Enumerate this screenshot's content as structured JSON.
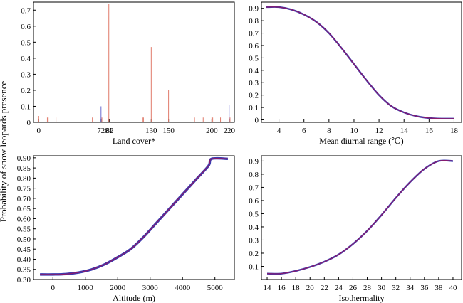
{
  "figure": {
    "ylabel": "Probability of snow leopards presence"
  },
  "colors": {
    "axis": "#000000",
    "line": "#8b1a6b",
    "line_shadow": "#3b3bb0",
    "bar_red": "#e07a6a",
    "bar_blue": "#6a6ad0"
  },
  "chart_data": [
    {
      "id": "landcover",
      "type": "bar",
      "xlabel": "Land cover*",
      "ylabel": "",
      "ylim": [
        0,
        0.75
      ],
      "yticks": [
        0,
        0.1,
        0.2,
        0.3,
        0.4,
        0.5,
        0.6,
        0.7
      ],
      "xticks": [
        0,
        72,
        81,
        82,
        130,
        150,
        200,
        220
      ],
      "xlim": [
        -6,
        226
      ],
      "grid": false,
      "bars": [
        {
          "x": 0,
          "value": 0.04,
          "color": "red"
        },
        {
          "x": 10,
          "value": 0.03,
          "color": "red"
        },
        {
          "x": 11,
          "value": 0.03,
          "color": "red"
        },
        {
          "x": 20,
          "value": 0.03,
          "color": "red"
        },
        {
          "x": 62,
          "value": 0.03,
          "color": "red"
        },
        {
          "x": 72,
          "value": 0.1,
          "color": "blue"
        },
        {
          "x": 73,
          "value": 0.03,
          "color": "red"
        },
        {
          "x": 80,
          "value": 0.66,
          "color": "red"
        },
        {
          "x": 81,
          "value": 0.74,
          "color": "red"
        },
        {
          "x": 82,
          "value": 0.0,
          "color": "red"
        },
        {
          "x": 120,
          "value": 0.03,
          "color": "red"
        },
        {
          "x": 121,
          "value": 0.03,
          "color": "red"
        },
        {
          "x": 130,
          "value": 0.47,
          "color": "red"
        },
        {
          "x": 150,
          "value": 0.2,
          "color": "red"
        },
        {
          "x": 180,
          "value": 0.03,
          "color": "red"
        },
        {
          "x": 190,
          "value": 0.03,
          "color": "red"
        },
        {
          "x": 200,
          "value": 0.03,
          "color": "red"
        },
        {
          "x": 201,
          "value": 0.03,
          "color": "red"
        },
        {
          "x": 210,
          "value": 0.03,
          "color": "red"
        },
        {
          "x": 220,
          "value": 0.11,
          "color": "blue"
        },
        {
          "x": 221,
          "value": 0.03,
          "color": "red"
        }
      ]
    },
    {
      "id": "diurnal",
      "type": "line",
      "xlabel": "Mean diurnal range (℃)",
      "ylabel": "",
      "xlim": [
        2.6,
        18.6
      ],
      "ylim": [
        -0.02,
        0.95
      ],
      "xticks": [
        4,
        6,
        8,
        10,
        12,
        14,
        16,
        18
      ],
      "yticks": [
        0,
        0.1,
        0.2,
        0.3,
        0.4,
        0.5,
        0.6,
        0.7,
        0.8,
        0.9
      ],
      "grid": false,
      "series": [
        {
          "x": [
            3,
            4,
            5,
            6,
            7,
            8,
            9,
            10,
            11,
            12,
            13,
            14,
            15,
            16,
            17,
            18
          ],
          "y": [
            0.91,
            0.91,
            0.89,
            0.85,
            0.79,
            0.7,
            0.58,
            0.45,
            0.32,
            0.2,
            0.11,
            0.06,
            0.03,
            0.015,
            0.01,
            0.01
          ]
        }
      ]
    },
    {
      "id": "altitude",
      "type": "line",
      "xlabel": "Altitude (m)",
      "ylabel": "",
      "xlim": [
        -600,
        5600
      ],
      "ylim": [
        0.3,
        0.91
      ],
      "xticks": [
        0,
        1000,
        2000,
        3000,
        4000,
        5000
      ],
      "yticks": [
        0.3,
        0.35,
        0.4,
        0.45,
        0.5,
        0.55,
        0.6,
        0.65,
        0.7,
        0.75,
        0.8,
        0.85,
        0.9
      ],
      "ytick_labels": [
        "0.30",
        "0.35",
        "0.40",
        "0.45",
        "0.50",
        "0.55",
        "0.60",
        "0.65",
        "0.70",
        "0.75",
        "0.80",
        "0.85",
        "0.90"
      ],
      "grid": false,
      "series": [
        {
          "x": [
            -400,
            0,
            400,
            800,
            1200,
            1600,
            2000,
            2400,
            2800,
            3200,
            3600,
            4000,
            4400,
            4800,
            4900,
            5400
          ],
          "y": [
            0.325,
            0.325,
            0.327,
            0.335,
            0.35,
            0.375,
            0.41,
            0.45,
            0.51,
            0.58,
            0.65,
            0.72,
            0.79,
            0.86,
            0.895,
            0.895
          ]
        }
      ]
    },
    {
      "id": "isothermality",
      "type": "line",
      "xlabel": "Isothermality",
      "ylabel": "",
      "xlim": [
        13.2,
        41.2
      ],
      "ylim": [
        0.0,
        0.94
      ],
      "xticks": [
        14,
        16,
        18,
        20,
        22,
        24,
        26,
        28,
        30,
        32,
        34,
        36,
        38,
        40
      ],
      "yticks": [
        0.1,
        0.2,
        0.3,
        0.4,
        0.5,
        0.6,
        0.7,
        0.8,
        0.9
      ],
      "grid": false,
      "series": [
        {
          "x": [
            14,
            16,
            18,
            20,
            22,
            24,
            26,
            28,
            30,
            32,
            34,
            36,
            38,
            40
          ],
          "y": [
            0.045,
            0.045,
            0.065,
            0.095,
            0.135,
            0.19,
            0.27,
            0.37,
            0.49,
            0.62,
            0.74,
            0.84,
            0.9,
            0.9
          ]
        }
      ]
    }
  ]
}
